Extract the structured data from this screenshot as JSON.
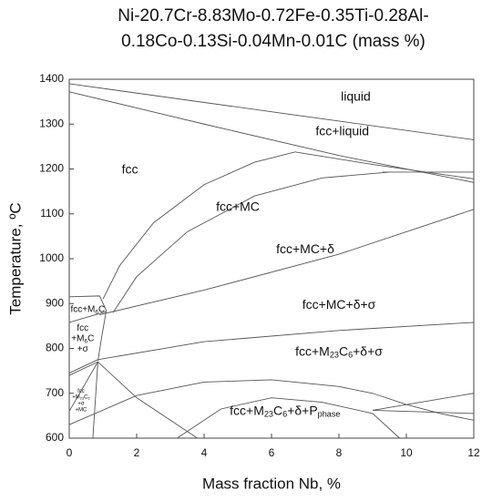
{
  "chart_data": {
    "type": "line",
    "title": [
      "Ni-20.7Cr-8.83Mo-0.72Fe-0.35Ti-0.28Al-",
      "0.18Co-0.13Si-0.04Mn-0.01C (mass %)"
    ],
    "xlabel": "Mass fraction Nb, %",
    "ylabel": "Temperature, ºC",
    "xlim": [
      0,
      12
    ],
    "ylim": [
      600,
      1400
    ],
    "xticks": [
      0,
      2,
      4,
      6,
      8,
      10,
      12
    ],
    "yticks": [
      600,
      700,
      800,
      900,
      1000,
      1100,
      1200,
      1300,
      1400
    ],
    "grid": false,
    "color": "#555555",
    "series": [
      {
        "x": [
          0,
          12
        ],
        "values": [
          1390,
          1265
        ]
      },
      {
        "x": [
          0,
          4,
          8,
          12
        ],
        "values": [
          1372,
          1300,
          1230,
          1170
        ]
      },
      {
        "x": [
          6.7,
          9,
          12
        ],
        "values": [
          1238,
          1210,
          1178
        ]
      },
      {
        "x": [
          9.3,
          12
        ],
        "values": [
          1193,
          1193
        ]
      },
      {
        "x": [
          1,
          1.5,
          2.5,
          4,
          5.5,
          6.7
        ],
        "values": [
          910,
          985,
          1080,
          1165,
          1215,
          1238
        ]
      },
      {
        "x": [
          1.3,
          2,
          3.5,
          5.5,
          7.5,
          9.5
        ],
        "values": [
          880,
          960,
          1060,
          1140,
          1180,
          1193
        ]
      },
      {
        "x": [
          0.9,
          4,
          8,
          12
        ],
        "values": [
          875,
          930,
          1010,
          1110
        ]
      },
      {
        "x": [
          0,
          0.9,
          1.1,
          0.95,
          0.85
        ],
        "values": [
          915,
          917,
          885,
          820,
          772
        ]
      },
      {
        "x": [
          0,
          1.1
        ],
        "values": [
          858,
          882
        ]
      },
      {
        "x": [
          0,
          0.85
        ],
        "values": [
          745,
          775
        ]
      },
      {
        "x": [
          0,
          0.85
        ],
        "values": [
          740,
          770
        ]
      },
      {
        "x": [
          0.85,
          4,
          8,
          12
        ],
        "values": [
          775,
          815,
          840,
          858
        ]
      },
      {
        "x": [
          0,
          2,
          4,
          6,
          8,
          9,
          10,
          11,
          12
        ],
        "values": [
          630,
          695,
          725,
          730,
          715,
          700,
          675,
          655,
          640
        ]
      },
      {
        "x": [
          3.2,
          4.5,
          6,
          7.5,
          9,
          9.8
        ],
        "values": [
          600,
          665,
          690,
          680,
          655,
          600
        ]
      },
      {
        "x": [
          0,
          0.85
        ],
        "values": [
          660,
          770
        ]
      },
      {
        "x": [
          0.85,
          0.7
        ],
        "values": [
          770,
          600
        ]
      },
      {
        "x": [
          0.85,
          2,
          3.8
        ],
        "values": [
          770,
          690,
          600
        ]
      },
      {
        "x": [
          9,
          12
        ],
        "values": [
          662,
          700
        ]
      },
      {
        "x": [
          9,
          12
        ],
        "values": [
          662,
          655
        ]
      }
    ],
    "annotations": [
      {
        "lines": [
          [
            "liquid"
          ]
        ],
        "x": 8.5,
        "y": 1360,
        "size": 14
      },
      {
        "lines": [
          [
            "fcc+liquid"
          ]
        ],
        "x": 8.1,
        "y": 1283,
        "size": 14
      },
      {
        "lines": [
          [
            "fcc"
          ]
        ],
        "x": 1.8,
        "y": 1198,
        "size": 14
      },
      {
        "lines": [
          [
            "fcc+MC"
          ]
        ],
        "x": 5,
        "y": 1115,
        "size": 14
      },
      {
        "lines": [
          [
            "fcc+MC+δ"
          ]
        ],
        "x": 7,
        "y": 1020,
        "size": 14
      },
      {
        "lines": [
          [
            "fcc+MC+δ+σ"
          ]
        ],
        "x": 8,
        "y": 896,
        "size": 14
      },
      {
        "lines": [
          [
            "fcc+M",
            "6",
            "C"
          ]
        ],
        "x": 0.55,
        "y": 887,
        "size": 10
      },
      {
        "lines": [
          [
            "fcc"
          ],
          [
            "+M",
            "6",
            "C"
          ],
          [
            "+σ"
          ]
        ],
        "x": 0.4,
        "y": 822,
        "size": 10
      },
      {
        "lines": [
          [
            "fcc+M",
            "23",
            "C",
            "6",
            "+δ+σ"
          ]
        ],
        "x": 8,
        "y": 792,
        "size": 14
      },
      {
        "lines": [
          [
            "fcc"
          ],
          [
            "+M",
            "23",
            "C",
            "6"
          ],
          [
            "+σ"
          ],
          [
            "+MC"
          ]
        ],
        "x": 0.35,
        "y": 685,
        "size": 6
      },
      {
        "lines": [
          [
            "fcc+M",
            "23",
            "C",
            "6",
            "+δ+P",
            "phase"
          ]
        ],
        "x": 6.4,
        "y": 660,
        "size": 14
      }
    ]
  }
}
